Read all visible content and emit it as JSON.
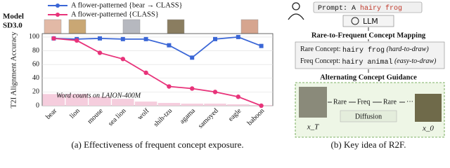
{
  "chart_data": {
    "type": "line",
    "model_label": "Model",
    "model_name": "SD3.0",
    "y_label": "T2I Alignment Accuracy",
    "categories": [
      "bear",
      "lion",
      "mouse",
      "sea lion",
      "wolf",
      "shih-tzu",
      "agama",
      "samoyed",
      "eagle",
      "baboon"
    ],
    "series": [
      {
        "name": "A flower-patterned {bear → CLASS}",
        "color": "#3a66d6",
        "marker": "square",
        "values": [
          98,
          97,
          98,
          97,
          97,
          88,
          70,
          97,
          100,
          87
        ]
      },
      {
        "name": "A flower-patterned {CLASS}",
        "color": "#e8337a",
        "marker": "star",
        "values": [
          98,
          95,
          77,
          68,
          48,
          28,
          25,
          20,
          13,
          0
        ]
      }
    ],
    "word_counts": [
      17,
      17,
      13,
      10,
      6,
      4,
      3,
      3,
      2,
      1
    ],
    "word_counts_color": "#f5cddd",
    "annotation": "Word counts on LAION-400M",
    "ylim": [
      0,
      105
    ],
    "yticks": [
      0,
      20,
      40,
      60,
      80,
      100
    ],
    "grid": true,
    "caption": "(a) Effectiveness of frequent concept exposure."
  },
  "diagram": {
    "prompt": {
      "label": "Prompt: A",
      "text": "hairy frog"
    },
    "llm": "LLM",
    "mapping_title": "Rare-to-Frequent Concept Mapping",
    "rare": {
      "label": "Rare Concept:",
      "concept": "hairy frog",
      "note": "(hard-to-draw)"
    },
    "freq": {
      "label": "Freq Concept:",
      "concept": "hairy animal",
      "note": "(easy-to-draw)"
    },
    "guidance_title": "Alternating Concept Guidance",
    "flow": [
      "Rare",
      "Freq",
      "Rare",
      "···"
    ],
    "diffusion": "Diffusion",
    "x_start": "x_T",
    "x_end": "x_0",
    "caption": "(b) Key idea of R2F."
  }
}
